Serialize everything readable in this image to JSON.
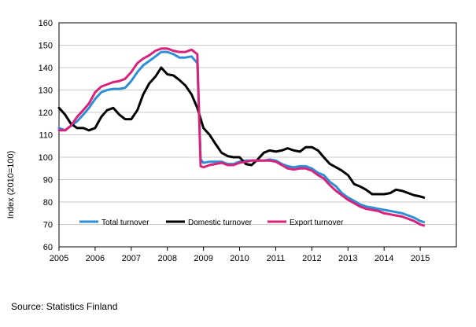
{
  "source_text": "Source:  Statistics Finland",
  "chart_data": {
    "type": "line",
    "xlabel": "",
    "ylabel": "Index (2010=100)",
    "xlim": [
      2005,
      2016
    ],
    "ylim": [
      60,
      160
    ],
    "yticks": [
      60,
      70,
      80,
      90,
      100,
      110,
      120,
      130,
      140,
      150,
      160
    ],
    "xticks": [
      2005,
      2006,
      2007,
      2008,
      2009,
      2010,
      2011,
      2012,
      2013,
      2014,
      2015
    ],
    "grid": true,
    "legend_position": "bottom-inside",
    "series": [
      {
        "name": "Total turnover",
        "color": "#2e8fd6",
        "points": [
          [
            2005.0,
            113
          ],
          [
            2005.17,
            112
          ],
          [
            2005.33,
            114
          ],
          [
            2005.5,
            116
          ],
          [
            2005.67,
            119
          ],
          [
            2005.83,
            122
          ],
          [
            2006.0,
            126
          ],
          [
            2006.17,
            129
          ],
          [
            2006.33,
            130
          ],
          [
            2006.5,
            130.5
          ],
          [
            2006.67,
            130.5
          ],
          [
            2006.83,
            131
          ],
          [
            2007.0,
            134
          ],
          [
            2007.17,
            138
          ],
          [
            2007.33,
            141
          ],
          [
            2007.5,
            143
          ],
          [
            2007.67,
            145
          ],
          [
            2007.83,
            147
          ],
          [
            2008.0,
            147
          ],
          [
            2008.17,
            146
          ],
          [
            2008.33,
            144.5
          ],
          [
            2008.5,
            144.5
          ],
          [
            2008.67,
            145
          ],
          [
            2008.83,
            142
          ],
          [
            2008.92,
            99
          ],
          [
            2009.0,
            97.5
          ],
          [
            2009.17,
            98
          ],
          [
            2009.33,
            98
          ],
          [
            2009.5,
            98
          ],
          [
            2009.67,
            97
          ],
          [
            2009.83,
            97
          ],
          [
            2010.0,
            98
          ],
          [
            2010.17,
            98.5
          ],
          [
            2010.33,
            98.5
          ],
          [
            2010.5,
            98.5
          ],
          [
            2010.67,
            98.5
          ],
          [
            2010.83,
            99
          ],
          [
            2011.0,
            98.5
          ],
          [
            2011.17,
            97
          ],
          [
            2011.33,
            96
          ],
          [
            2011.5,
            95.5
          ],
          [
            2011.67,
            96
          ],
          [
            2011.83,
            96
          ],
          [
            2012.0,
            95
          ],
          [
            2012.17,
            93
          ],
          [
            2012.33,
            92
          ],
          [
            2012.5,
            89
          ],
          [
            2012.67,
            87
          ],
          [
            2012.83,
            84
          ],
          [
            2013.0,
            82
          ],
          [
            2013.17,
            80.5
          ],
          [
            2013.33,
            79
          ],
          [
            2013.5,
            78
          ],
          [
            2013.67,
            77.5
          ],
          [
            2013.83,
            77
          ],
          [
            2014.0,
            76.5
          ],
          [
            2014.17,
            76
          ],
          [
            2014.33,
            75.5
          ],
          [
            2014.5,
            75
          ],
          [
            2014.67,
            74
          ],
          [
            2014.83,
            73
          ],
          [
            2015.0,
            71.5
          ],
          [
            2015.1,
            71
          ]
        ]
      },
      {
        "name": "Domestic turnover",
        "color": "#000000",
        "points": [
          [
            2005.0,
            122
          ],
          [
            2005.17,
            119
          ],
          [
            2005.33,
            115
          ],
          [
            2005.5,
            113
          ],
          [
            2005.67,
            113
          ],
          [
            2005.83,
            112
          ],
          [
            2006.0,
            113
          ],
          [
            2006.17,
            118
          ],
          [
            2006.33,
            121
          ],
          [
            2006.5,
            122
          ],
          [
            2006.67,
            119
          ],
          [
            2006.83,
            117
          ],
          [
            2007.0,
            117
          ],
          [
            2007.17,
            121
          ],
          [
            2007.33,
            128
          ],
          [
            2007.5,
            133
          ],
          [
            2007.67,
            136
          ],
          [
            2007.83,
            140
          ],
          [
            2008.0,
            137
          ],
          [
            2008.17,
            136.5
          ],
          [
            2008.33,
            134.5
          ],
          [
            2008.5,
            132
          ],
          [
            2008.67,
            128
          ],
          [
            2008.83,
            122
          ],
          [
            2009.0,
            113
          ],
          [
            2009.17,
            110
          ],
          [
            2009.33,
            106
          ],
          [
            2009.5,
            102
          ],
          [
            2009.67,
            100.5
          ],
          [
            2009.83,
            100
          ],
          [
            2010.0,
            100
          ],
          [
            2010.17,
            97
          ],
          [
            2010.33,
            96.5
          ],
          [
            2010.5,
            99
          ],
          [
            2010.67,
            102
          ],
          [
            2010.83,
            103
          ],
          [
            2011.0,
            102.5
          ],
          [
            2011.17,
            103
          ],
          [
            2011.33,
            104
          ],
          [
            2011.5,
            103
          ],
          [
            2011.67,
            102.5
          ],
          [
            2011.83,
            104.5
          ],
          [
            2012.0,
            104.5
          ],
          [
            2012.17,
            103
          ],
          [
            2012.33,
            100
          ],
          [
            2012.5,
            97
          ],
          [
            2012.67,
            95.5
          ],
          [
            2012.83,
            94
          ],
          [
            2013.0,
            92
          ],
          [
            2013.17,
            88
          ],
          [
            2013.33,
            87
          ],
          [
            2013.5,
            85.5
          ],
          [
            2013.67,
            83.5
          ],
          [
            2013.83,
            83.5
          ],
          [
            2014.0,
            83.5
          ],
          [
            2014.17,
            84
          ],
          [
            2014.33,
            85.5
          ],
          [
            2014.5,
            85
          ],
          [
            2014.67,
            84
          ],
          [
            2014.83,
            83
          ],
          [
            2015.0,
            82.5
          ],
          [
            2015.1,
            82
          ]
        ]
      },
      {
        "name": "Export turnover",
        "color": "#d8237a",
        "points": [
          [
            2005.0,
            112
          ],
          [
            2005.17,
            112
          ],
          [
            2005.33,
            114
          ],
          [
            2005.5,
            118
          ],
          [
            2005.67,
            121
          ],
          [
            2005.83,
            124
          ],
          [
            2006.0,
            129
          ],
          [
            2006.17,
            131.5
          ],
          [
            2006.33,
            132.5
          ],
          [
            2006.5,
            133.5
          ],
          [
            2006.67,
            134
          ],
          [
            2006.83,
            135
          ],
          [
            2007.0,
            138
          ],
          [
            2007.17,
            142
          ],
          [
            2007.33,
            144
          ],
          [
            2007.5,
            145.5
          ],
          [
            2007.67,
            147.5
          ],
          [
            2007.83,
            148.5
          ],
          [
            2008.0,
            148.5
          ],
          [
            2008.17,
            147.5
          ],
          [
            2008.33,
            147
          ],
          [
            2008.5,
            147
          ],
          [
            2008.67,
            148
          ],
          [
            2008.83,
            146
          ],
          [
            2008.92,
            96
          ],
          [
            2009.0,
            95.5
          ],
          [
            2009.17,
            96.5
          ],
          [
            2009.33,
            97
          ],
          [
            2009.5,
            97.5
          ],
          [
            2009.67,
            96.5
          ],
          [
            2009.83,
            96.5
          ],
          [
            2010.0,
            97.5
          ],
          [
            2010.17,
            98
          ],
          [
            2010.33,
            98.5
          ],
          [
            2010.5,
            98.5
          ],
          [
            2010.67,
            98.5
          ],
          [
            2010.83,
            98.5
          ],
          [
            2011.0,
            98
          ],
          [
            2011.17,
            96.5
          ],
          [
            2011.33,
            95
          ],
          [
            2011.5,
            94.5
          ],
          [
            2011.67,
            95
          ],
          [
            2011.83,
            95
          ],
          [
            2012.0,
            94
          ],
          [
            2012.17,
            92
          ],
          [
            2012.33,
            90.5
          ],
          [
            2012.5,
            87.5
          ],
          [
            2012.67,
            85
          ],
          [
            2012.83,
            83
          ],
          [
            2013.0,
            81
          ],
          [
            2013.17,
            79.5
          ],
          [
            2013.33,
            78
          ],
          [
            2013.5,
            77
          ],
          [
            2013.67,
            76.5
          ],
          [
            2013.83,
            76
          ],
          [
            2014.0,
            75
          ],
          [
            2014.17,
            74.5
          ],
          [
            2014.33,
            74
          ],
          [
            2014.5,
            73.5
          ],
          [
            2014.67,
            72.5
          ],
          [
            2014.83,
            71.5
          ],
          [
            2015.0,
            70
          ],
          [
            2015.1,
            69.5
          ]
        ]
      }
    ]
  }
}
